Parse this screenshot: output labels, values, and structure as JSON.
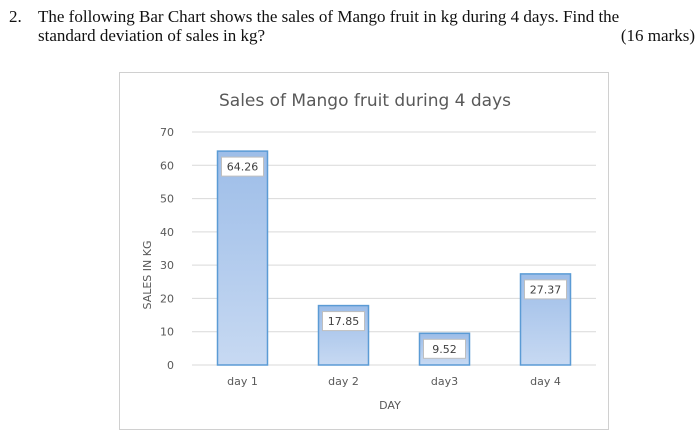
{
  "question": {
    "number": "2.",
    "line1": "The following Bar Chart shows the sales of Mango fruit in kg during 4 days. Find the",
    "line2": "standard deviation of sales in kg?",
    "marks": "(16 marks)"
  },
  "chart_data": {
    "type": "bar",
    "title": "Sales of Mango fruit during 4 days",
    "xlabel": "DAY",
    "ylabel": "SALES IN KG",
    "categories": [
      "day 1",
      "day 2",
      "day3",
      "day 4"
    ],
    "values": [
      64.26,
      17.85,
      9.52,
      27.37
    ],
    "data_labels": [
      "64.26",
      "17.85",
      "9.52",
      "27.37"
    ],
    "ylim": [
      0,
      70
    ],
    "yticks": [
      0,
      10,
      20,
      30,
      40,
      50,
      60,
      70
    ],
    "grid": true,
    "legend": "none",
    "colors": {
      "bar_top": "#9dbde8",
      "bar_bottom": "#c7d9f2",
      "bar_border": "#5b9bd5",
      "grid": "#d9d9d9",
      "text": "#595959"
    }
  }
}
